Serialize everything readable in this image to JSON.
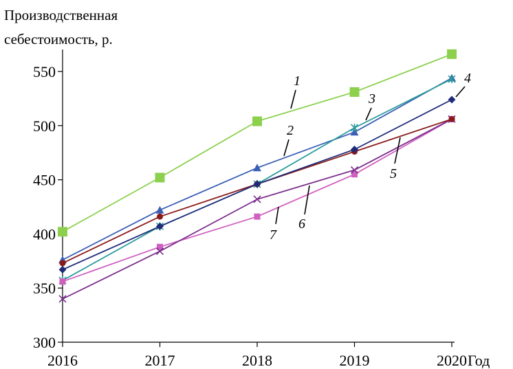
{
  "chart_data": {
    "type": "line",
    "ylabel_lines": [
      "Производственная",
      "себестоимость, р."
    ],
    "xlabel": "Год",
    "x": [
      "2016",
      "2017",
      "2018",
      "2019",
      "2020"
    ],
    "ylim": [
      300,
      550
    ],
    "yticks": [
      "300",
      "350",
      "400",
      "450",
      "500",
      "550"
    ],
    "series": [
      {
        "name": "1",
        "color": "#8cd04e",
        "marker": "square-large",
        "values": [
          402,
          452,
          504,
          531,
          566
        ]
      },
      {
        "name": "2",
        "color": "#3b5fb5",
        "marker": "triangle",
        "values": [
          376,
          422,
          461,
          494,
          544
        ]
      },
      {
        "name": "3",
        "color": "#2a9a9a",
        "marker": "star",
        "values": [
          357,
          407,
          446,
          498,
          543
        ]
      },
      {
        "name": "4",
        "color": "#1f2a78",
        "marker": "diamond",
        "values": [
          367,
          407,
          446,
          478,
          524
        ]
      },
      {
        "name": "5",
        "color": "#8b1a1a",
        "marker": "circle",
        "values": [
          373,
          416,
          446,
          476,
          506
        ]
      },
      {
        "name": "6",
        "color": "#7b2d8c",
        "marker": "cross",
        "values": [
          340,
          384,
          432,
          459,
          506
        ]
      },
      {
        "name": "7",
        "color": "#d060c0",
        "marker": "square",
        "values": [
          356,
          388,
          416,
          455,
          506
        ]
      }
    ]
  }
}
